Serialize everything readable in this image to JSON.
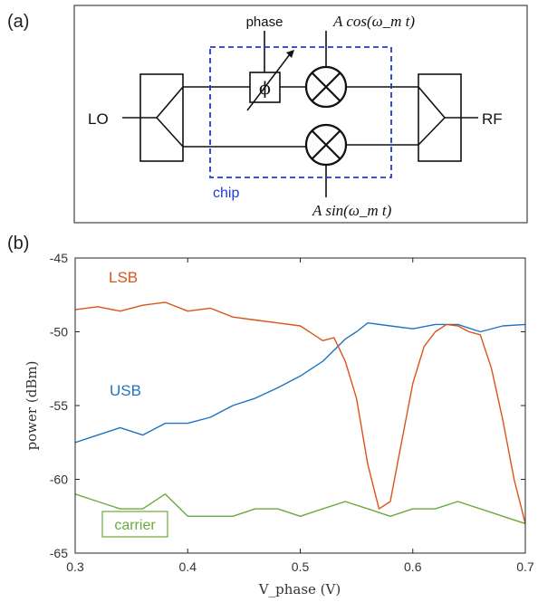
{
  "panel_a": {
    "label": "(a)",
    "lo_label": "LO",
    "rf_label": "RF",
    "phase_label": "phase",
    "phi_symbol": "ϕ",
    "chip_label": "chip",
    "mixer_top_label": "A cos(ω_m t)",
    "mixer_bottom_label": "A sin(ω_m t)",
    "chip_color": "#1f3bd6"
  },
  "panel_b": {
    "label": "(b)"
  },
  "chart_data": {
    "type": "line",
    "xlabel": "V_phase (V)",
    "ylabel": "power (dBm)",
    "xlim": [
      0.3,
      0.7
    ],
    "ylim": [
      -65,
      -45
    ],
    "xticks": [
      0.3,
      0.4,
      0.5,
      0.6,
      0.7
    ],
    "yticks": [
      -45,
      -50,
      -55,
      -60,
      -65
    ],
    "grid": false,
    "annotations": [
      {
        "text": "LSB",
        "color": "#d9541a"
      },
      {
        "text": "USB",
        "color": "#1f73c0"
      },
      {
        "text": "carrier",
        "color": "#6aaa3a"
      }
    ],
    "series": [
      {
        "name": "LSB",
        "color": "#d9541a",
        "x": [
          0.3,
          0.32,
          0.34,
          0.36,
          0.38,
          0.4,
          0.42,
          0.44,
          0.46,
          0.48,
          0.5,
          0.51,
          0.52,
          0.53,
          0.54,
          0.55,
          0.56,
          0.57,
          0.58,
          0.59,
          0.6,
          0.61,
          0.62,
          0.63,
          0.64,
          0.65,
          0.66,
          0.67,
          0.68,
          0.69,
          0.7
        ],
        "values": [
          -48.5,
          -48.3,
          -48.6,
          -48.2,
          -48.0,
          -48.6,
          -48.4,
          -49.0,
          -49.2,
          -49.4,
          -49.6,
          -50.1,
          -50.6,
          -50.4,
          -52.0,
          -54.5,
          -59.0,
          -62.0,
          -61.5,
          -57.5,
          -53.5,
          -51.0,
          -50.0,
          -49.5,
          -49.6,
          -50.0,
          -50.2,
          -52.5,
          -56.0,
          -60.0,
          -63.0
        ]
      },
      {
        "name": "USB",
        "color": "#1f73c0",
        "x": [
          0.3,
          0.32,
          0.34,
          0.36,
          0.38,
          0.4,
          0.42,
          0.44,
          0.46,
          0.48,
          0.5,
          0.52,
          0.54,
          0.55,
          0.56,
          0.58,
          0.6,
          0.62,
          0.64,
          0.66,
          0.68,
          0.7
        ],
        "values": [
          -57.5,
          -57.0,
          -56.5,
          -57.0,
          -56.2,
          -56.2,
          -55.8,
          -55.0,
          -54.5,
          -53.8,
          -53.0,
          -52.0,
          -50.5,
          -50.0,
          -49.4,
          -49.6,
          -49.8,
          -49.5,
          -49.5,
          -50.0,
          -49.6,
          -49.5
        ]
      },
      {
        "name": "carrier",
        "color": "#6aaa3a",
        "x": [
          0.3,
          0.32,
          0.34,
          0.36,
          0.38,
          0.4,
          0.42,
          0.44,
          0.46,
          0.48,
          0.5,
          0.52,
          0.54,
          0.56,
          0.58,
          0.6,
          0.62,
          0.64,
          0.66,
          0.68,
          0.7
        ],
        "values": [
          -61.0,
          -61.5,
          -62.0,
          -62.0,
          -61.0,
          -62.5,
          -62.5,
          -62.5,
          -62.0,
          -62.0,
          -62.5,
          -62.0,
          -61.5,
          -62.0,
          -62.5,
          -62.0,
          -62.0,
          -61.5,
          -62.0,
          -62.5,
          -63.0
        ]
      }
    ]
  }
}
